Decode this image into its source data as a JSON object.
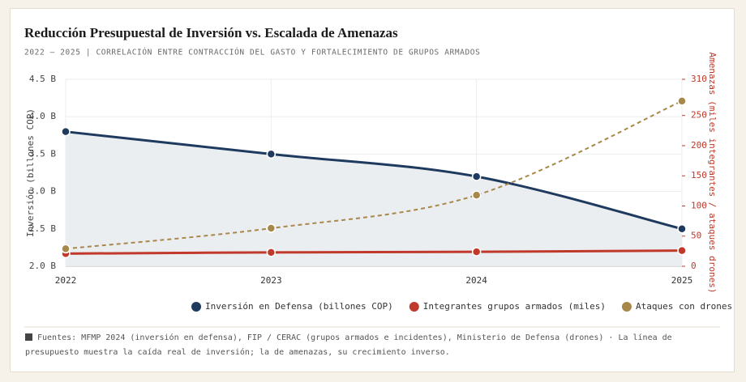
{
  "chart_data": {
    "type": "line",
    "title": "Reducción Presupuestal de Inversión vs. Escalada de Amenazas",
    "subtitle": "2022 – 2025 | CORRELACIÓN ENTRE CONTRACCIÓN DEL GASTO Y FORTALECIMIENTO DE GRUPOS ARMADOS",
    "categories": [
      "2022",
      "2023",
      "2024",
      "2025"
    ],
    "y_label": "Inversión (billones COP)",
    "y2_label": "Amenazas (miles integrantes / ataques drones)",
    "ylim": [
      2.0,
      4.5
    ],
    "yticks": [
      {
        "value": 2.0,
        "label": "2.0 B"
      },
      {
        "value": 2.5,
        "label": "2.5 B"
      },
      {
        "value": 3.0,
        "label": "3.0 B"
      },
      {
        "value": 3.5,
        "label": "3.5 B"
      },
      {
        "value": 4.0,
        "label": "4.0 B"
      },
      {
        "value": 4.5,
        "label": "4.5 B"
      }
    ],
    "y2lim": [
      0,
      310
    ],
    "y2ticks": [
      0,
      50,
      100,
      150,
      200,
      250,
      310
    ],
    "grid": true,
    "series": [
      {
        "name": "Inversión en Defensa (billones COP)",
        "color": "#1f3a5f",
        "values": [
          3.8,
          3.5,
          3.2,
          2.5
        ],
        "area": true
      },
      {
        "name": "Integrantes grupos armados (miles)",
        "color": "#c0392b",
        "values": [
          21,
          23,
          24,
          26
        ],
        "axis": "y2"
      },
      {
        "name": "Ataques con drones",
        "color": "#a8874a",
        "values": [
          29,
          63,
          118,
          274
        ],
        "axis": "y2",
        "dashed": true
      }
    ]
  },
  "note": "Fuentes: MFMP 2024 (inversión en defensa), FIP / CERAC (grupos armados e incidentes), Ministerio de Defensa (drones) · La línea de presupuesto muestra la caída real de inversión; la de amenazas, su crecimiento inverso."
}
